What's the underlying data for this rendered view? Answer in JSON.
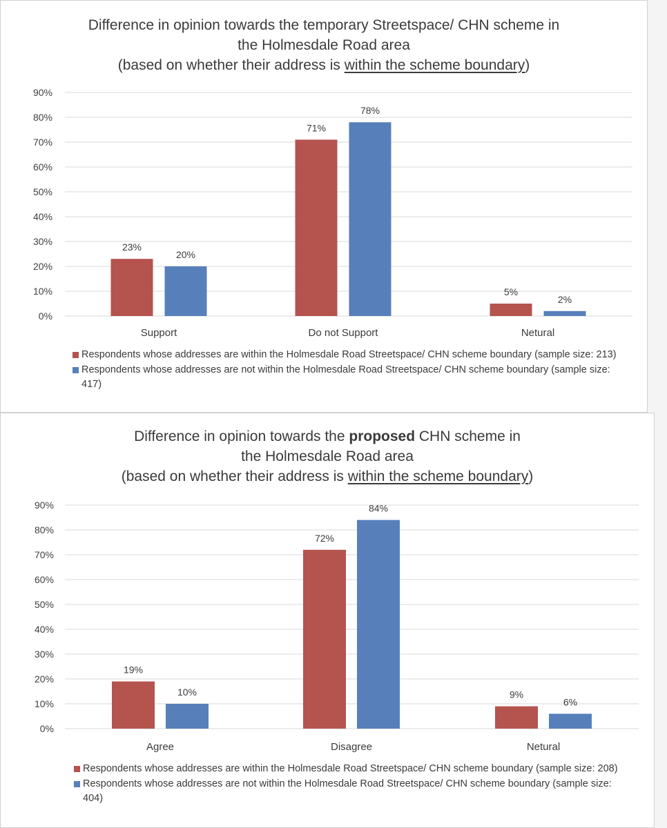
{
  "colors": {
    "within": "#b5534f",
    "not_within": "#5780bb",
    "grid": "#d9d9d9",
    "axis_text": "#404040"
  },
  "chart_data": [
    {
      "type": "bar",
      "title_lines": [
        [
          {
            "text": "Difference in opinion towards the temporary Streetspace/ CHN scheme in"
          }
        ],
        [
          {
            "text": "the Holmesdale Road area"
          }
        ],
        [
          {
            "text": "(based on whether their address is "
          },
          {
            "text": "within the scheme boundary",
            "underline": true
          },
          {
            "text": ")"
          }
        ]
      ],
      "categories": [
        "Support",
        "Do not Support",
        "Netural"
      ],
      "series": [
        {
          "name": "Respondents whose addresses are within the Holmesdale Road Streetspace/ CHN scheme boundary (sample size: 213)",
          "values": [
            23,
            71,
            5
          ],
          "labels": [
            "23%",
            "71%",
            "5%"
          ],
          "color": "#b5534f"
        },
        {
          "name": "Respondents whose addresses are not within the Holmesdale Road Streetspace/ CHN scheme boundary (sample size: 417)",
          "values": [
            20,
            78,
            2
          ],
          "labels": [
            "20%",
            "78%",
            "2%"
          ],
          "color": "#5780bb"
        }
      ],
      "y_ticks": [
        "0%",
        "10%",
        "20%",
        "30%",
        "40%",
        "50%",
        "60%",
        "70%",
        "80%",
        "90%"
      ],
      "ylim": [
        0,
        90
      ],
      "grid": true,
      "legend_position": "bottom"
    },
    {
      "type": "bar",
      "title_lines": [
        [
          {
            "text": "Difference in opinion towards the "
          },
          {
            "text": "proposed",
            "bold": true
          },
          {
            "text": " CHN scheme in"
          }
        ],
        [
          {
            "text": "the Holmesdale Road area"
          }
        ],
        [
          {
            "text": "(based on whether their address is "
          },
          {
            "text": "within the scheme boundary",
            "underline": true
          },
          {
            "text": ")"
          }
        ]
      ],
      "categories": [
        "Agree",
        "Disagree",
        "Netural"
      ],
      "series": [
        {
          "name": "Respondents whose addresses are within the Holmesdale Road Streetspace/ CHN scheme boundary (sample size: 208)",
          "values": [
            19,
            72,
            9
          ],
          "labels": [
            "19%",
            "72%",
            "9%"
          ],
          "color": "#b5534f"
        },
        {
          "name": "Respondents whose addresses are not within the Holmesdale Road Streetspace/ CHN scheme boundary (sample size: 404)",
          "values": [
            10,
            84,
            6
          ],
          "labels": [
            "10%",
            "84%",
            "6%"
          ],
          "color": "#5780bb"
        }
      ],
      "y_ticks": [
        "0%",
        "10%",
        "20%",
        "30%",
        "40%",
        "50%",
        "60%",
        "70%",
        "80%",
        "90%"
      ],
      "ylim": [
        0,
        90
      ],
      "grid": true,
      "legend_position": "bottom"
    }
  ]
}
